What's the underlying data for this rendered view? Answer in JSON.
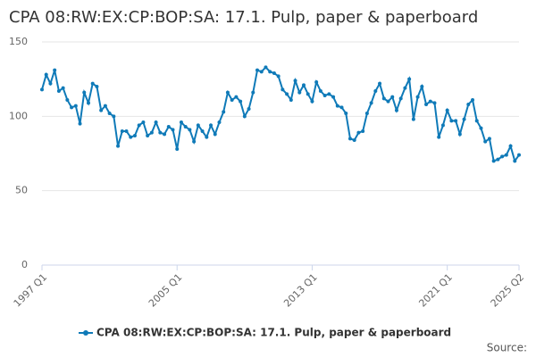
{
  "chart_data": {
    "type": "line",
    "title": "CPA 08:RW:EX:CP:BOP:SA: 17.1. Pulp, paper & paperboard",
    "source": "Source:",
    "categories": [
      "1997 Q1",
      null,
      null,
      null,
      null,
      null,
      null,
      null,
      null,
      null,
      null,
      null,
      null,
      null,
      null,
      null,
      null,
      null,
      null,
      null,
      null,
      null,
      null,
      null,
      null,
      null,
      null,
      null,
      null,
      null,
      null,
      null,
      "2005 Q1",
      null,
      null,
      null,
      null,
      null,
      null,
      null,
      null,
      null,
      null,
      null,
      null,
      null,
      null,
      null,
      null,
      null,
      null,
      null,
      null,
      null,
      null,
      null,
      null,
      null,
      null,
      null,
      null,
      null,
      null,
      null,
      "2013 Q1",
      null,
      null,
      null,
      null,
      null,
      null,
      null,
      null,
      null,
      null,
      null,
      null,
      null,
      null,
      null,
      null,
      null,
      null,
      null,
      null,
      null,
      null,
      null,
      null,
      null,
      null,
      null,
      null,
      null,
      null,
      null,
      "2021 Q1",
      null,
      null,
      null,
      null,
      null,
      null,
      null,
      null,
      null,
      null,
      null,
      null,
      null,
      null,
      null,
      null,
      "2025 Q2"
    ],
    "series": [
      {
        "name": "CPA 08:RW:EX:CP:BOP:SA: 17.1. Pulp, paper & paperboard",
        "color": "#0f7ab8",
        "values": [
          118,
          128,
          122,
          131,
          117,
          119,
          111,
          106,
          107,
          95,
          116,
          109,
          122,
          120,
          104,
          107,
          102,
          100,
          80,
          90,
          90,
          86,
          87,
          94,
          96,
          87,
          89,
          96,
          89,
          88,
          93,
          91,
          78,
          96,
          93,
          91,
          83,
          94,
          90,
          86,
          94,
          88,
          96,
          103,
          116,
          111,
          113,
          110,
          100,
          105,
          116,
          131,
          130,
          133,
          130,
          129,
          127,
          118,
          115,
          111,
          124,
          116,
          121,
          115,
          110,
          123,
          117,
          114,
          115,
          113,
          107,
          106,
          102,
          85,
          84,
          89,
          90,
          102,
          109,
          117,
          122,
          112,
          110,
          113,
          104,
          112,
          119,
          125,
          98,
          113,
          120,
          108,
          110,
          109,
          86,
          94,
          104,
          97,
          97,
          88,
          98,
          108,
          111,
          97,
          92,
          83,
          85,
          70,
          71,
          73,
          74,
          80,
          70,
          74
        ]
      }
    ],
    "ylim": [
      0,
      150
    ],
    "yticks": [
      0,
      50,
      100,
      150
    ],
    "grid": true
  }
}
